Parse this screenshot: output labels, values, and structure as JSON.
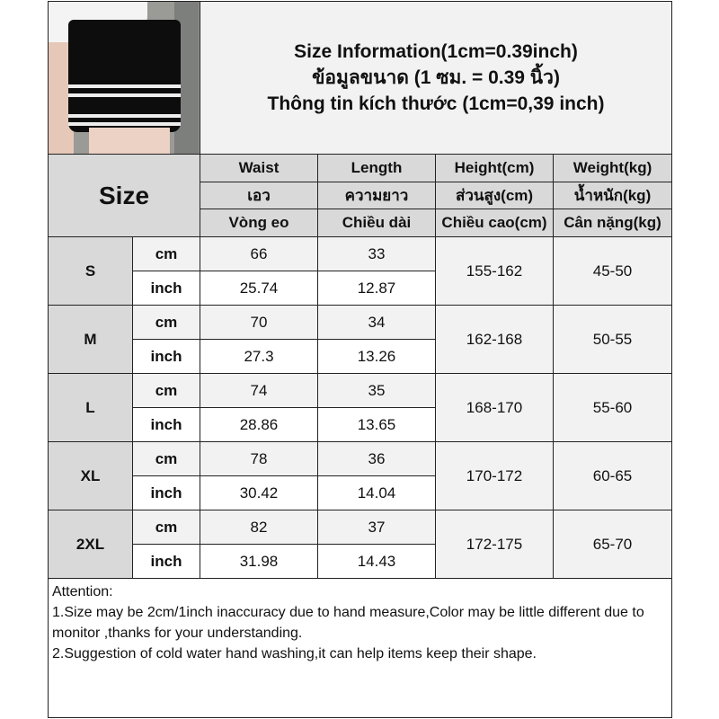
{
  "title_lines": [
    "Size Information(1cm=0.39inch)",
    "ข้อมูลขนาด (1 ซม. = 0.39 นิ้ว)",
    "Thông tin kích thước (1cm=0,39 inch)"
  ],
  "size_label": "Size",
  "headers": [
    [
      "Waist",
      "Length",
      "Height(cm)",
      "Weight(kg)"
    ],
    [
      "เอว",
      "ความยาว",
      "ส่วนสูง(cm)",
      "น้ำหนัก(kg)"
    ],
    [
      "Vòng eo",
      "Chiều dài",
      "Chiều cao(cm)",
      "Cân nặng(kg)"
    ]
  ],
  "rows": [
    {
      "size": "S",
      "cm": {
        "unit": "cm",
        "waist": "66",
        "length": "33"
      },
      "inch": {
        "unit": "inch",
        "waist": "25.74",
        "length": "12.87"
      },
      "height": "155-162",
      "weight": "45-50"
    },
    {
      "size": "M",
      "cm": {
        "unit": "cm",
        "waist": "70",
        "length": "34"
      },
      "inch": {
        "unit": "inch",
        "waist": "27.3",
        "length": "13.26"
      },
      "height": "162-168",
      "weight": "50-55"
    },
    {
      "size": "L",
      "cm": {
        "unit": "cm",
        "waist": "74",
        "length": "35"
      },
      "inch": {
        "unit": "inch",
        "waist": "28.86",
        "length": "13.65"
      },
      "height": "168-170",
      "weight": "55-60"
    },
    {
      "size": "XL",
      "cm": {
        "unit": "cm",
        "waist": "78",
        "length": "36"
      },
      "inch": {
        "unit": "inch",
        "waist": "30.42",
        "length": "14.04"
      },
      "height": "170-172",
      "weight": "60-65"
    },
    {
      "size": "2XL",
      "cm": {
        "unit": "cm",
        "waist": "82",
        "length": "37"
      },
      "inch": {
        "unit": "inch",
        "waist": "31.98",
        "length": "14.43"
      },
      "height": "172-175",
      "weight": "65-70"
    }
  ],
  "attention": {
    "heading": "Attention:",
    "lines": [
      "1.Size may be 2cm/1inch inaccuracy due to hand measure,Color may be little different due to monitor ,thanks for your understanding.",
      "2.Suggestion of cold water hand washing,it can help items keep their shape."
    ]
  },
  "colors": {
    "header_gray": "#d9d9d9",
    "light_gray": "#f2f2f2",
    "border": "#222222"
  }
}
